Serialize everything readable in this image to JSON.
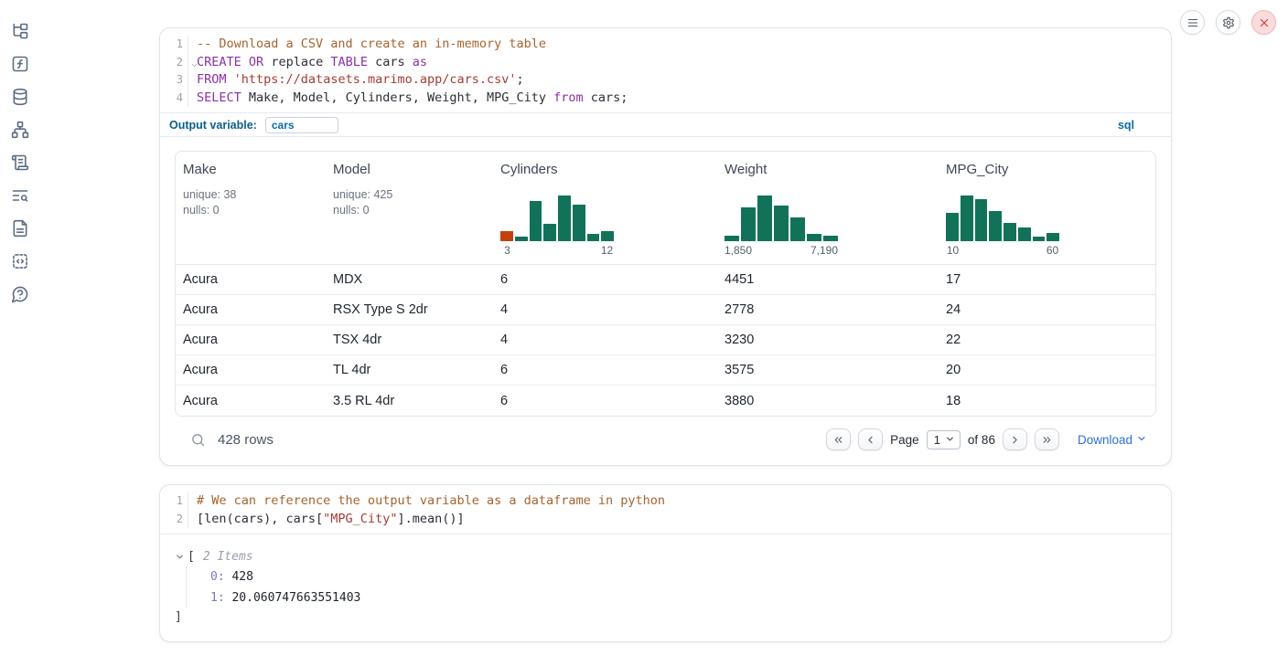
{
  "colors": {
    "hist_green": "#117259",
    "hist_orange": "#c2410c"
  },
  "sidebar": {
    "icons": [
      "file-tree",
      "variables",
      "data-sources",
      "dependency-graph",
      "logs",
      "text-search",
      "documentation",
      "snippets",
      "help"
    ]
  },
  "topbar": {
    "buttons": [
      {
        "name": "menu"
      },
      {
        "name": "settings"
      },
      {
        "name": "shutdown"
      }
    ]
  },
  "sql_cell": {
    "lines": [
      {
        "num": "1",
        "tokens": [
          [
            "comment",
            "-- Download a CSV and create an in-memory table"
          ]
        ]
      },
      {
        "num": "2",
        "fold": true,
        "tokens": [
          [
            "keyword",
            "CREATE"
          ],
          [
            "plain",
            " "
          ],
          [
            "keyword",
            "OR"
          ],
          [
            "plain",
            " replace "
          ],
          [
            "keyword",
            "TABLE"
          ],
          [
            "plain",
            " cars "
          ],
          [
            "keyword",
            "as"
          ]
        ]
      },
      {
        "num": "3",
        "tokens": [
          [
            "keyword",
            "FROM"
          ],
          [
            "plain",
            " "
          ],
          [
            "string",
            "'https://datasets.marimo.app/cars.csv'"
          ],
          [
            "plain",
            ";"
          ]
        ]
      },
      {
        "num": "4",
        "tokens": [
          [
            "keyword",
            "SELECT"
          ],
          [
            "plain",
            " Make, Model, Cylinders, Weight, MPG_City "
          ],
          [
            "keyword",
            "from"
          ],
          [
            "plain",
            " cars;"
          ]
        ]
      }
    ],
    "output_variable": {
      "label": "Output variable:",
      "value": "cars"
    },
    "language_badge": "sql"
  },
  "table": {
    "columns": [
      {
        "name": "Make",
        "stats": [
          "unique: 38",
          "nulls: 0"
        ]
      },
      {
        "name": "Model",
        "stats": [
          "unique: 425",
          "nulls: 0"
        ]
      },
      {
        "name": "Cylinders",
        "histogram": {
          "type": "bar",
          "bars": [
            22,
            10,
            88,
            38,
            100,
            80,
            17,
            23
          ],
          "first_bar_color": "#c2410c",
          "min_label": "3",
          "max_label": "12"
        }
      },
      {
        "name": "Weight",
        "histogram": {
          "type": "bar",
          "bars": [
            12,
            75,
            100,
            78,
            52,
            16,
            12
          ],
          "min_label": "1,850",
          "max_label": "7,190"
        }
      },
      {
        "name": "MPG_City",
        "histogram": {
          "type": "bar",
          "bars": [
            62,
            100,
            93,
            67,
            40,
            30,
            10,
            18
          ],
          "min_label": "10",
          "max_label": "60"
        }
      }
    ],
    "rows": [
      [
        "Acura",
        "MDX",
        "6",
        "4451",
        "17"
      ],
      [
        "Acura",
        "RSX Type S 2dr",
        "4",
        "2778",
        "24"
      ],
      [
        "Acura",
        "TSX 4dr",
        "4",
        "3230",
        "22"
      ],
      [
        "Acura",
        "TL 4dr",
        "6",
        "3575",
        "20"
      ],
      [
        "Acura",
        "3.5 RL 4dr",
        "6",
        "3880",
        "18"
      ]
    ],
    "footer": {
      "rows_label": "428 rows",
      "page_label": "Page",
      "page_value": "1",
      "total_label": "of 86",
      "download_label": "Download"
    }
  },
  "python_cell": {
    "lines": [
      {
        "num": "1",
        "tokens": [
          [
            "comment",
            "# We can reference the output variable as a dataframe in python"
          ]
        ]
      },
      {
        "num": "2",
        "tokens": [
          [
            "plain",
            "[len(cars), cars["
          ],
          [
            "string",
            "\"MPG_City\""
          ],
          [
            "plain",
            "].mean()]"
          ]
        ]
      }
    ]
  },
  "output_tree": {
    "open": "[",
    "count_label": "2 Items",
    "entries": [
      {
        "key": "0:",
        "value": "428"
      },
      {
        "key": "1:",
        "value": "20.060747663551403"
      }
    ],
    "close": "]"
  }
}
